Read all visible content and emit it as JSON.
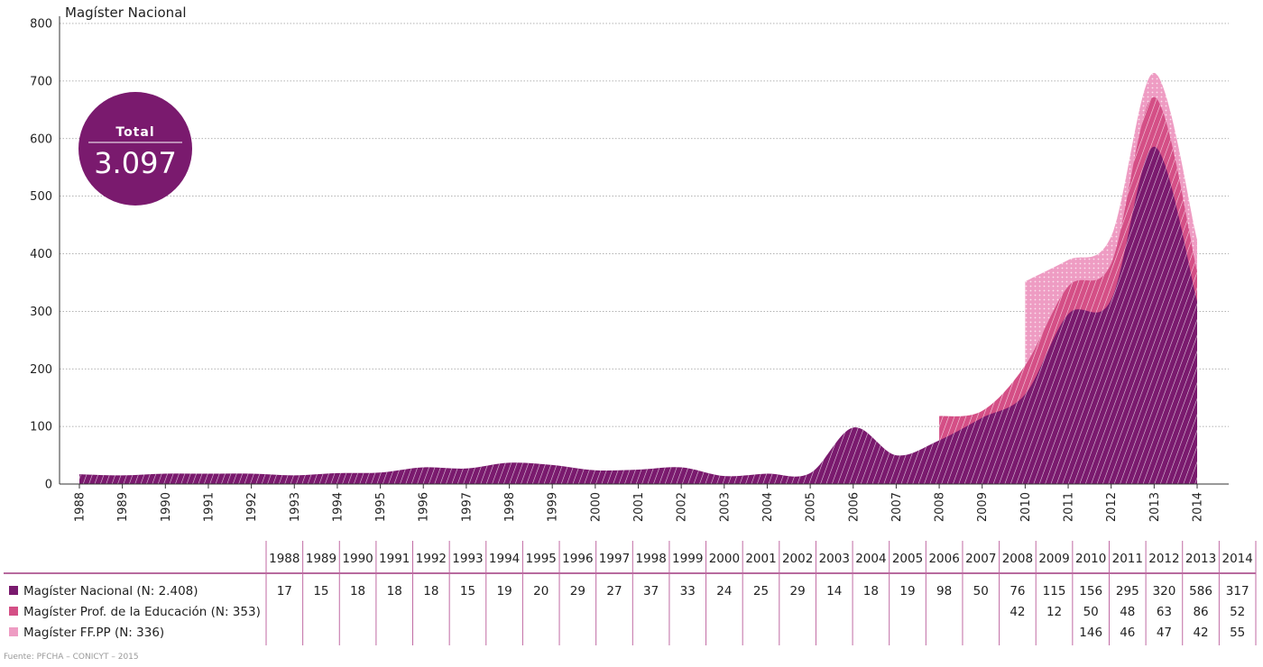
{
  "source": "Fuente: PFCHA – CONICYT – 2015",
  "badge": {
    "label": "Total",
    "value": "3.097",
    "color": "#7a1a6e"
  },
  "chart_data": {
    "type": "area",
    "stacked": true,
    "title": "Magíster Nacional",
    "ylim": [
      0,
      800
    ],
    "yticks": [
      0,
      100,
      200,
      300,
      400,
      500,
      600,
      700,
      800
    ],
    "grid": true,
    "x": [
      "1988",
      "1989",
      "1990",
      "1991",
      "1992",
      "1993",
      "1994",
      "1995",
      "1996",
      "1997",
      "1998",
      "1999",
      "2000",
      "2001",
      "2002",
      "2003",
      "2004",
      "2005",
      "2006",
      "2007",
      "2008",
      "2009",
      "2010",
      "2011",
      "2012",
      "2013",
      "2014"
    ],
    "series": [
      {
        "name": "Magíster Nacional (N: 2.408)",
        "color": "#7a1a6e",
        "values": [
          17,
          15,
          18,
          18,
          18,
          15,
          19,
          20,
          29,
          27,
          37,
          33,
          24,
          25,
          29,
          14,
          18,
          19,
          98,
          50,
          76,
          115,
          156,
          295,
          320,
          586,
          317
        ]
      },
      {
        "name": "Magíster Prof. de la Educación (N: 353)",
        "color": "#d44f86",
        "values": [
          null,
          null,
          null,
          null,
          null,
          null,
          null,
          null,
          null,
          null,
          null,
          null,
          null,
          null,
          null,
          null,
          null,
          null,
          null,
          null,
          42,
          12,
          50,
          48,
          63,
          86,
          52
        ]
      },
      {
        "name": "Magíster FF.PP (N: 336)",
        "color": "#ee9cc3",
        "values": [
          null,
          null,
          null,
          null,
          null,
          null,
          null,
          null,
          null,
          null,
          null,
          null,
          null,
          null,
          null,
          null,
          null,
          null,
          null,
          null,
          null,
          null,
          146,
          46,
          47,
          42,
          55
        ]
      }
    ]
  }
}
